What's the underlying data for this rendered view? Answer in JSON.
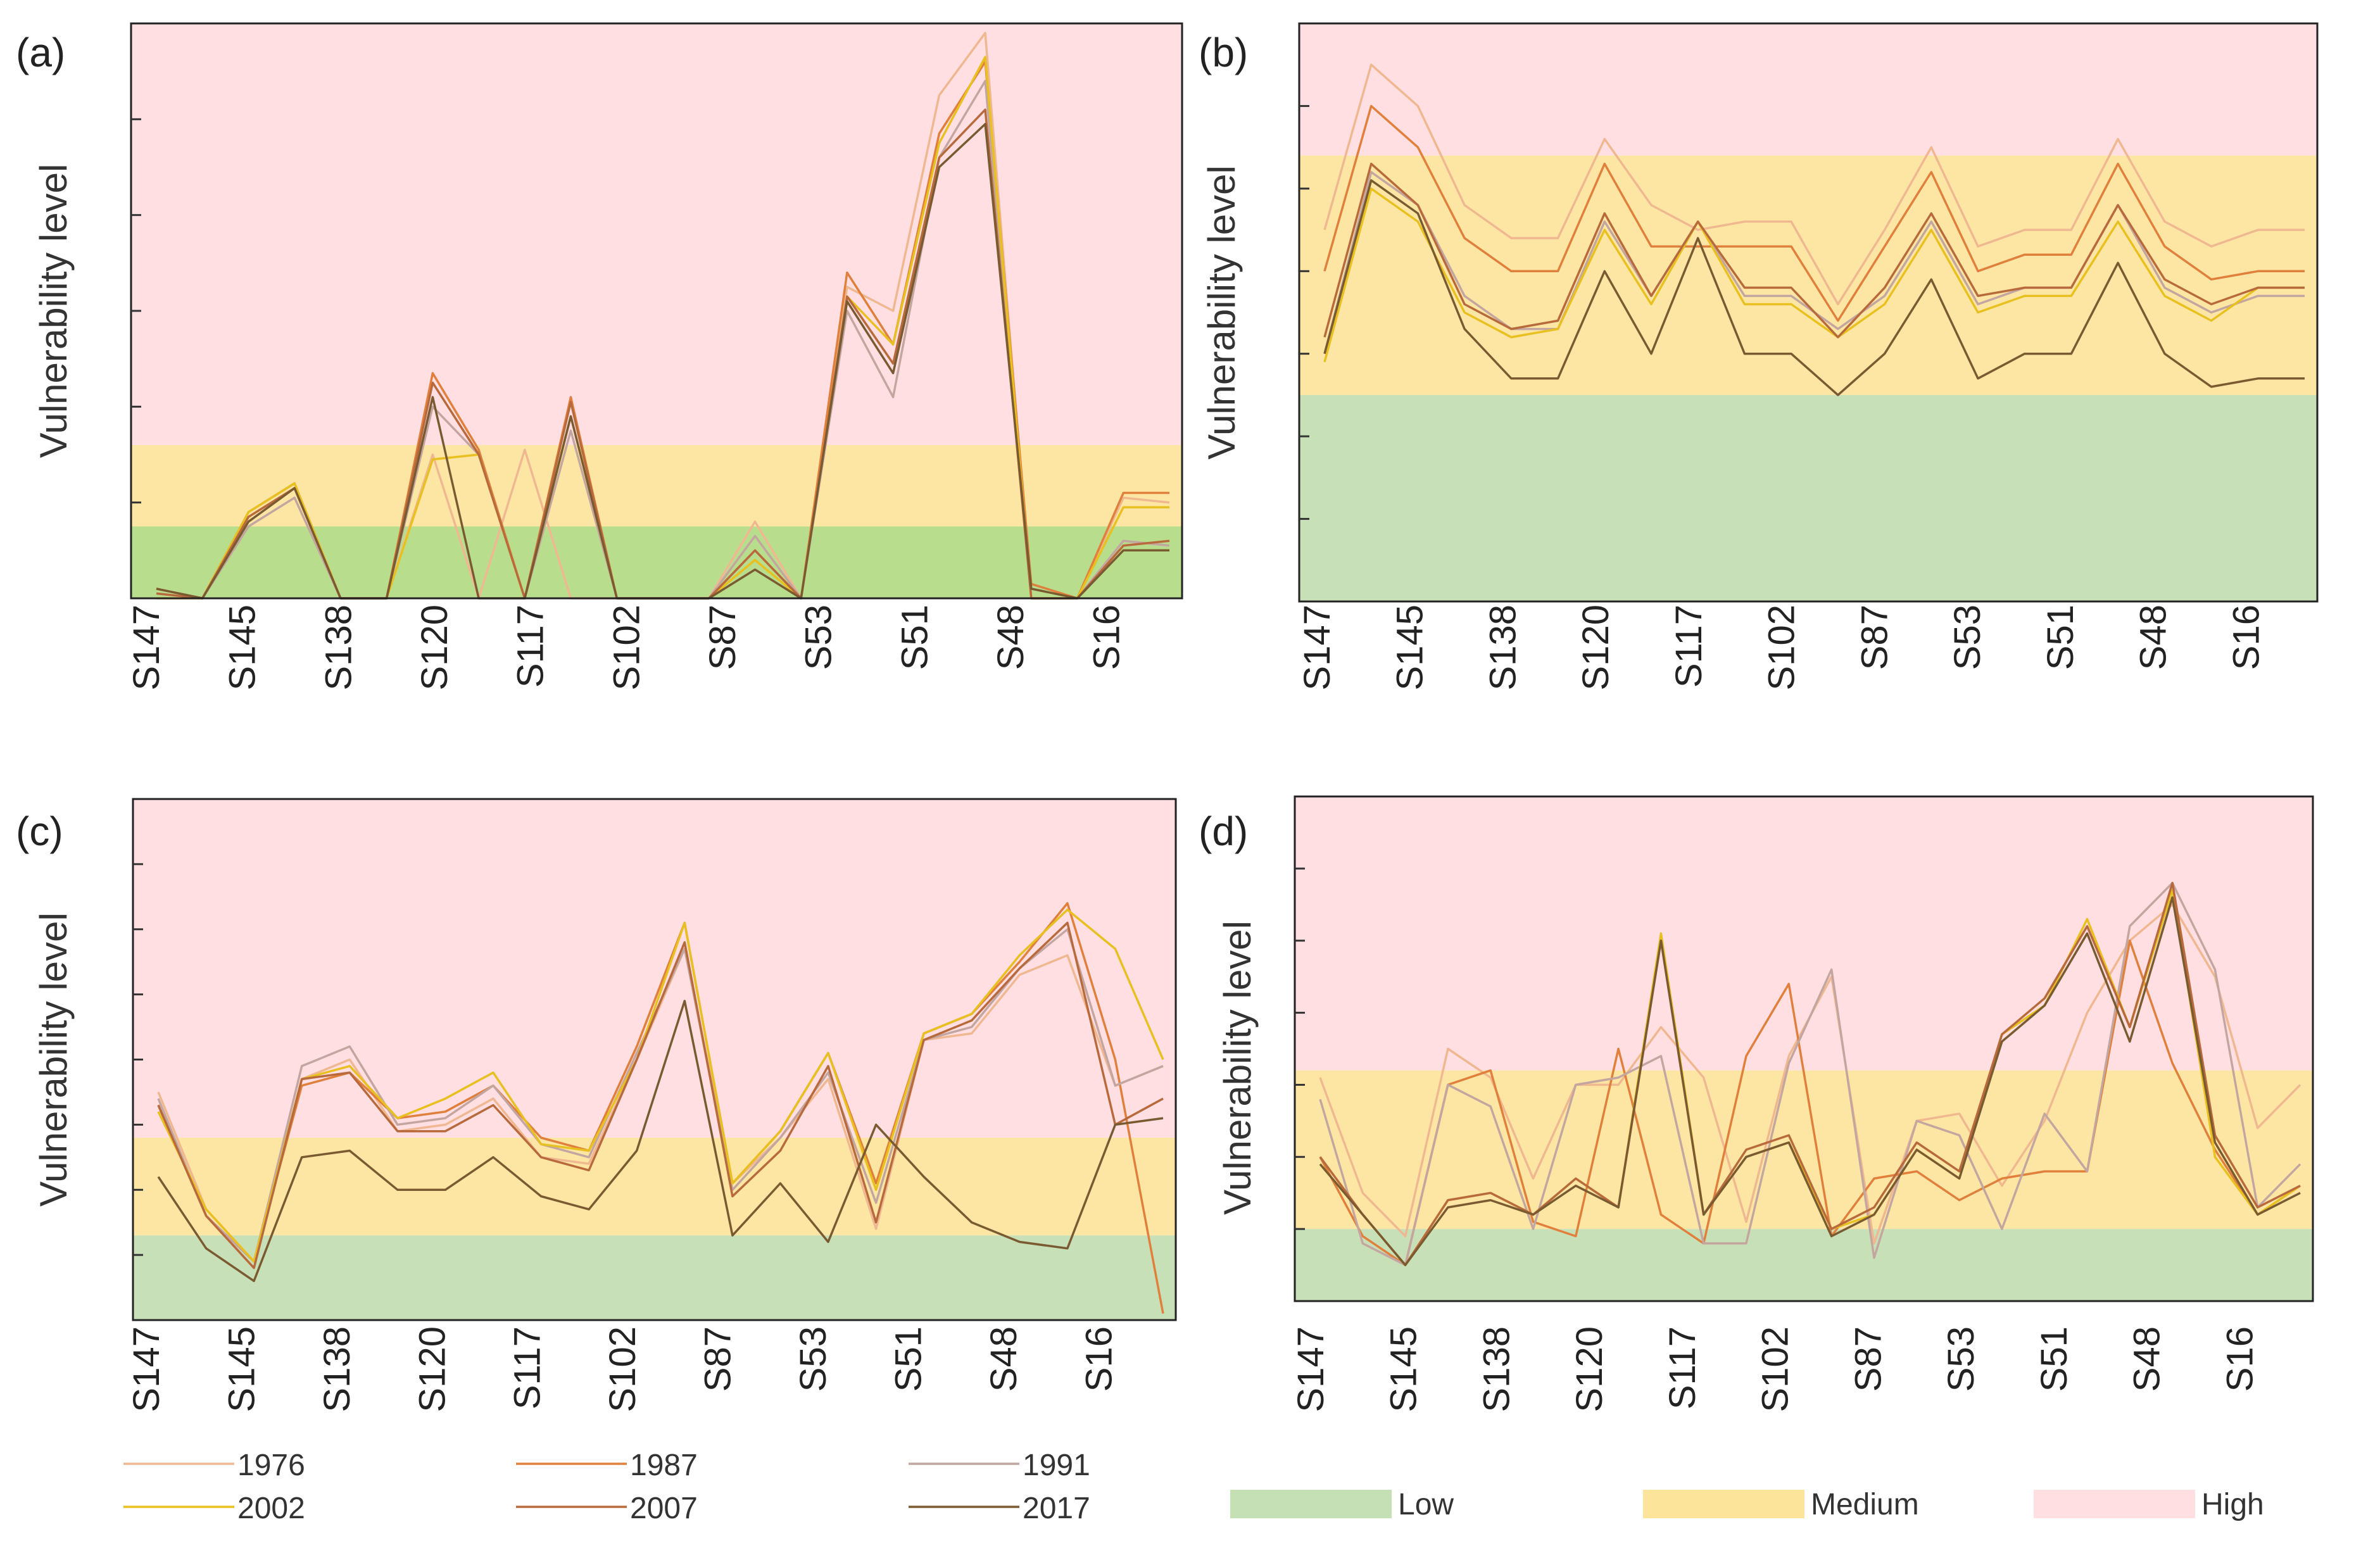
{
  "categories": [
    "S147",
    "S145",
    "S138",
    "S120",
    "S117",
    "S102",
    "S87",
    "S53",
    "S51",
    "S48",
    "S16"
  ],
  "y_axis_label": "Vulnerability level",
  "zone_colors": {
    "low": "#b9dd8e",
    "medium": "#fde6a3",
    "high": "#ffdfe2"
  },
  "zones_legend": [
    {
      "label": "Low",
      "color": "#c5e0b4"
    },
    {
      "label": "Medium",
      "color": "#fde49b"
    },
    {
      "label": "High",
      "color": "#ffdfe2"
    }
  ],
  "series_legend": [
    {
      "name": "1976",
      "color": "#f0b890"
    },
    {
      "name": "1987",
      "color": "#e0803c"
    },
    {
      "name": "1991",
      "color": "#c4a6a0"
    },
    {
      "name": "2002",
      "color": "#e8c020"
    },
    {
      "name": "2007",
      "color": "#b86a3c"
    },
    {
      "name": "2017",
      "color": "#7a5a30"
    }
  ],
  "chart_data": [
    {
      "panel": "(a)",
      "type": "line",
      "ylim": [
        0,
        12
      ],
      "zones": [
        1.5,
        3.2
      ],
      "low_color": "#b8dd8d",
      "series": [
        {
          "name": "1976",
          "values": [
            0.1,
            0,
            1.6,
            2.3,
            0,
            0,
            3.0,
            0,
            3.1,
            0,
            0,
            0,
            0,
            1.6,
            0,
            6.5,
            6.0,
            10.5,
            11.8,
            0,
            0,
            2.1,
            2.0
          ]
        },
        {
          "name": "1987",
          "values": [
            0.2,
            0,
            1.8,
            2.4,
            0,
            0,
            4.7,
            3.1,
            0,
            4.2,
            0,
            0,
            0,
            1.0,
            0,
            6.8,
            5.3,
            9.7,
            11.2,
            0.3,
            0,
            2.2,
            2.2
          ]
        },
        {
          "name": "1991",
          "values": [
            0.1,
            0,
            1.5,
            2.1,
            0,
            0,
            4.0,
            3.0,
            0,
            3.5,
            0,
            0,
            0,
            1.3,
            0,
            6.0,
            4.2,
            9.2,
            10.8,
            0,
            0,
            1.2,
            1.1
          ]
        },
        {
          "name": "2002",
          "values": [
            0,
            0,
            1.8,
            2.4,
            0,
            0,
            2.9,
            3.0,
            0,
            3.8,
            0,
            0,
            0,
            0.8,
            0,
            6.3,
            5.3,
            9.5,
            11.3,
            0,
            0,
            1.9,
            1.9
          ]
        },
        {
          "name": "2007",
          "values": [
            0.1,
            0,
            1.7,
            2.3,
            0,
            0,
            4.5,
            3.0,
            0,
            4.1,
            0,
            0,
            0,
            1.0,
            0,
            6.3,
            4.9,
            9.2,
            10.2,
            0,
            0,
            1.1,
            1.2
          ]
        },
        {
          "name": "2017",
          "values": [
            0.2,
            0,
            1.6,
            2.3,
            0,
            0,
            4.2,
            0,
            0,
            3.8,
            0,
            0,
            0,
            0.6,
            0,
            6.2,
            4.7,
            9.0,
            9.9,
            0.2,
            0,
            1.0,
            1.0
          ]
        }
      ]
    },
    {
      "panel": "(b)",
      "type": "line",
      "ylim": [
        0,
        7
      ],
      "zones": [
        2.5,
        5.4
      ],
      "low_color": "#c8e0b7",
      "series": [
        {
          "name": "1976",
          "values": [
            4.5,
            6.5,
            6.0,
            4.8,
            4.4,
            4.4,
            5.6,
            4.8,
            4.5,
            4.6,
            4.6,
            3.6,
            4.5,
            5.5,
            4.3,
            4.5,
            4.5,
            5.6,
            4.6,
            4.3,
            4.5,
            4.5
          ]
        },
        {
          "name": "1987",
          "values": [
            4.0,
            6.0,
            5.5,
            4.4,
            4.0,
            4.0,
            5.3,
            4.3,
            4.3,
            4.3,
            4.3,
            3.4,
            4.3,
            5.2,
            4.0,
            4.2,
            4.2,
            5.3,
            4.3,
            3.9,
            4.0,
            4.0
          ]
        },
        {
          "name": "1991",
          "values": [
            3.0,
            5.2,
            4.8,
            3.7,
            3.3,
            3.3,
            4.6,
            3.7,
            4.6,
            3.7,
            3.7,
            3.3,
            3.7,
            4.6,
            3.6,
            3.8,
            3.8,
            4.8,
            3.8,
            3.5,
            3.7,
            3.7
          ]
        },
        {
          "name": "2002",
          "values": [
            2.9,
            5.0,
            4.6,
            3.5,
            3.2,
            3.3,
            4.5,
            3.6,
            4.6,
            3.6,
            3.6,
            3.2,
            3.6,
            4.5,
            3.5,
            3.7,
            3.7,
            4.6,
            3.7,
            3.4,
            3.8,
            3.8
          ]
        },
        {
          "name": "2007",
          "values": [
            3.2,
            5.3,
            4.8,
            3.6,
            3.3,
            3.4,
            4.7,
            3.7,
            4.6,
            3.8,
            3.8,
            3.2,
            3.8,
            4.7,
            3.7,
            3.8,
            3.8,
            4.8,
            3.9,
            3.6,
            3.8,
            3.8
          ]
        },
        {
          "name": "2017",
          "values": [
            3.0,
            5.1,
            4.7,
            3.3,
            2.7,
            2.7,
            4.0,
            3.0,
            4.4,
            3.0,
            3.0,
            2.5,
            3.0,
            3.9,
            2.7,
            3.0,
            3.0,
            4.1,
            3.0,
            2.6,
            2.7,
            2.7
          ]
        }
      ]
    },
    {
      "panel": "(c)",
      "type": "line",
      "ylim": [
        0,
        8
      ],
      "zones": [
        1.3,
        2.8
      ],
      "low_color": "#c8e0b7",
      "series": [
        {
          "name": "1976",
          "values": [
            3.5,
            1.7,
            0.9,
            3.7,
            4.0,
            2.9,
            3.0,
            3.4,
            2.5,
            2.4,
            4.0,
            5.7,
            2.1,
            2.8,
            3.7,
            1.4,
            4.3,
            4.4,
            5.3,
            5.6,
            3.6,
            3.9
          ]
        },
        {
          "name": "1987",
          "values": [
            3.3,
            1.6,
            0.9,
            3.6,
            3.8,
            3.1,
            3.2,
            3.6,
            2.8,
            2.6,
            4.2,
            6.1,
            2.1,
            2.9,
            4.1,
            2.1,
            4.4,
            4.7,
            5.5,
            6.4,
            4.0,
            0.1
          ]
        },
        {
          "name": "1991",
          "values": [
            3.4,
            1.6,
            0.9,
            3.9,
            4.2,
            3.0,
            3.1,
            3.6,
            2.7,
            2.5,
            4.1,
            5.7,
            2.0,
            2.8,
            3.8,
            1.8,
            4.3,
            4.5,
            5.4,
            6.0,
            3.6,
            3.9
          ]
        },
        {
          "name": "2002",
          "values": [
            3.2,
            1.7,
            0.9,
            3.7,
            3.9,
            3.1,
            3.4,
            3.8,
            2.7,
            2.6,
            4.0,
            6.1,
            2.1,
            2.9,
            4.1,
            2.0,
            4.4,
            4.7,
            5.6,
            6.3,
            5.7,
            4.0
          ]
        },
        {
          "name": "2007",
          "values": [
            3.3,
            1.6,
            0.8,
            3.7,
            3.8,
            2.9,
            2.9,
            3.3,
            2.5,
            2.3,
            4.0,
            5.8,
            1.9,
            2.6,
            3.9,
            1.5,
            4.3,
            4.6,
            5.4,
            6.1,
            3.0,
            3.4
          ]
        },
        {
          "name": "2017",
          "values": [
            2.2,
            1.1,
            0.6,
            2.5,
            2.6,
            2.0,
            2.0,
            2.5,
            1.9,
            1.7,
            2.6,
            4.9,
            1.3,
            2.1,
            1.2,
            3.0,
            2.2,
            1.5,
            1.2,
            1.1,
            3.0,
            3.1
          ]
        }
      ]
    },
    {
      "panel": "(d)",
      "type": "line",
      "ylim": [
        0,
        7
      ],
      "zones": [
        1.0,
        3.2
      ],
      "low_color": "#c8e0b7",
      "series": [
        {
          "name": "1976",
          "values": [
            3.1,
            1.5,
            0.9,
            3.5,
            3.1,
            1.7,
            3.0,
            3.0,
            3.8,
            3.1,
            1.1,
            3.4,
            4.5,
            0.8,
            2.5,
            2.6,
            1.6,
            2.5,
            4.0,
            5.0,
            5.5,
            4.5,
            2.4,
            3.0
          ]
        },
        {
          "name": "1987",
          "values": [
            2.0,
            0.9,
            0.5,
            3.0,
            3.2,
            1.1,
            0.9,
            3.5,
            1.2,
            0.8,
            3.4,
            4.4,
            0.9,
            1.7,
            1.8,
            1.4,
            1.7,
            1.8,
            1.8,
            5.0,
            3.3,
            2.1,
            1.2,
            1.6
          ]
        },
        {
          "name": "1991",
          "values": [
            2.8,
            0.8,
            0.5,
            3.0,
            2.7,
            1.0,
            3.0,
            3.1,
            3.4,
            0.8,
            0.8,
            3.3,
            4.6,
            0.6,
            2.5,
            2.3,
            1.0,
            2.6,
            1.8,
            5.2,
            5.8,
            4.6,
            1.3,
            1.9
          ]
        },
        {
          "name": "2002",
          "values": [
            1.9,
            1.2,
            0.5,
            1.4,
            1.5,
            1.2,
            1.7,
            1.3,
            5.1,
            1.2,
            2.0,
            2.2,
            1.0,
            1.2,
            2.1,
            1.7,
            3.7,
            4.1,
            5.3,
            3.8,
            5.7,
            2.0,
            1.2,
            1.6
          ]
        },
        {
          "name": "2007",
          "values": [
            2.0,
            1.2,
            0.5,
            1.4,
            1.5,
            1.2,
            1.7,
            1.3,
            5.0,
            1.2,
            2.1,
            2.3,
            1.0,
            1.3,
            2.2,
            1.8,
            3.7,
            4.2,
            5.2,
            3.8,
            5.8,
            2.3,
            1.3,
            1.6
          ]
        },
        {
          "name": "2017",
          "values": [
            1.9,
            1.2,
            0.5,
            1.3,
            1.4,
            1.2,
            1.6,
            1.3,
            5.0,
            1.2,
            2.0,
            2.2,
            0.9,
            1.2,
            2.1,
            1.7,
            3.6,
            4.1,
            5.1,
            3.6,
            5.6,
            2.2,
            1.2,
            1.5
          ]
        }
      ]
    }
  ]
}
